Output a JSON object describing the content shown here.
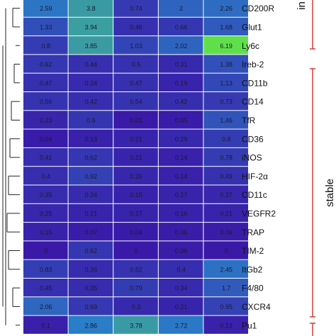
{
  "chart_data": {
    "type": "heatmap",
    "title": "",
    "xlabel": "",
    "ylabel": "",
    "rows": [
      {
        "label": "CD200R",
        "values": [
          2.59,
          3.8,
          0.74,
          2,
          2.26
        ]
      },
      {
        "label": "Glut1",
        "values": [
          1.33,
          3.94,
          0.46,
          0.66,
          1.68
        ]
      },
      {
        "label": "Ly6c",
        "values": [
          0.8,
          3.85,
          1.03,
          2.02,
          6.19
        ]
      },
      {
        "label": "Ireb-2",
        "values": [
          0.62,
          0.44,
          0.5,
          0.31,
          1.38
        ]
      },
      {
        "label": "CD11b",
        "values": [
          0.47,
          0.34,
          0.47,
          0.19,
          1.13
        ]
      },
      {
        "label": "CD14",
        "values": [
          0.56,
          0.42,
          0.54,
          0.42,
          0.73
        ]
      },
      {
        "label": "TfR",
        "values": [
          0.23,
          0.6,
          0.01,
          0.05,
          1.46
        ]
      },
      {
        "label": "CD36",
        "values": [
          0.04,
          0.13,
          0.21,
          0.29,
          0.8
        ]
      },
      {
        "label": "iNOS",
        "values": [
          0.41,
          0.62,
          0.21,
          0.14,
          0.78
        ]
      },
      {
        "label": "HIF-2α",
        "values": [
          0.4,
          0.92,
          0.26,
          0.14,
          0.49
        ]
      },
      {
        "label": "CD11c",
        "values": [
          0.35,
          0.34,
          0.15,
          0.17,
          0.27
        ]
      },
      {
        "label": "VEGFR2",
        "values": [
          0.25,
          0.21,
          0.17,
          0.16,
          0.21
        ]
      },
      {
        "label": "TRAP",
        "values": [
          0.15,
          0.07,
          0.04,
          0.06,
          0.06
        ]
      },
      {
        "label": "TIM-2",
        "values": [
          0,
          0.62,
          0,
          0.06,
          0
        ]
      },
      {
        "label": "ItGb2",
        "values": [
          0.83,
          0.36,
          0.52,
          0.4,
          2.45
        ]
      },
      {
        "label": "F4/80",
        "values": [
          0.45,
          0.35,
          0.79,
          0.34,
          1.7
        ]
      },
      {
        "label": "CXCR4",
        "values": [
          2.06,
          0.69,
          0.3,
          0.21,
          0.95
        ]
      },
      {
        "label": "Pu1",
        "values": [
          0.1,
          2.86,
          3.78,
          2.72,
          0.13
        ]
      }
    ],
    "color_scale": {
      "low": "#3a18a8",
      "mid": "#2a7fc8",
      "high": "#5fe04a",
      "min": 0,
      "max": 6.19
    },
    "groups": [
      {
        "label": "in",
        "color": "#d63a3a"
      },
      {
        "label": "stable",
        "color": "#d63a3a"
      },
      {
        "label": "",
        "color": "#d63a3a"
      }
    ]
  }
}
